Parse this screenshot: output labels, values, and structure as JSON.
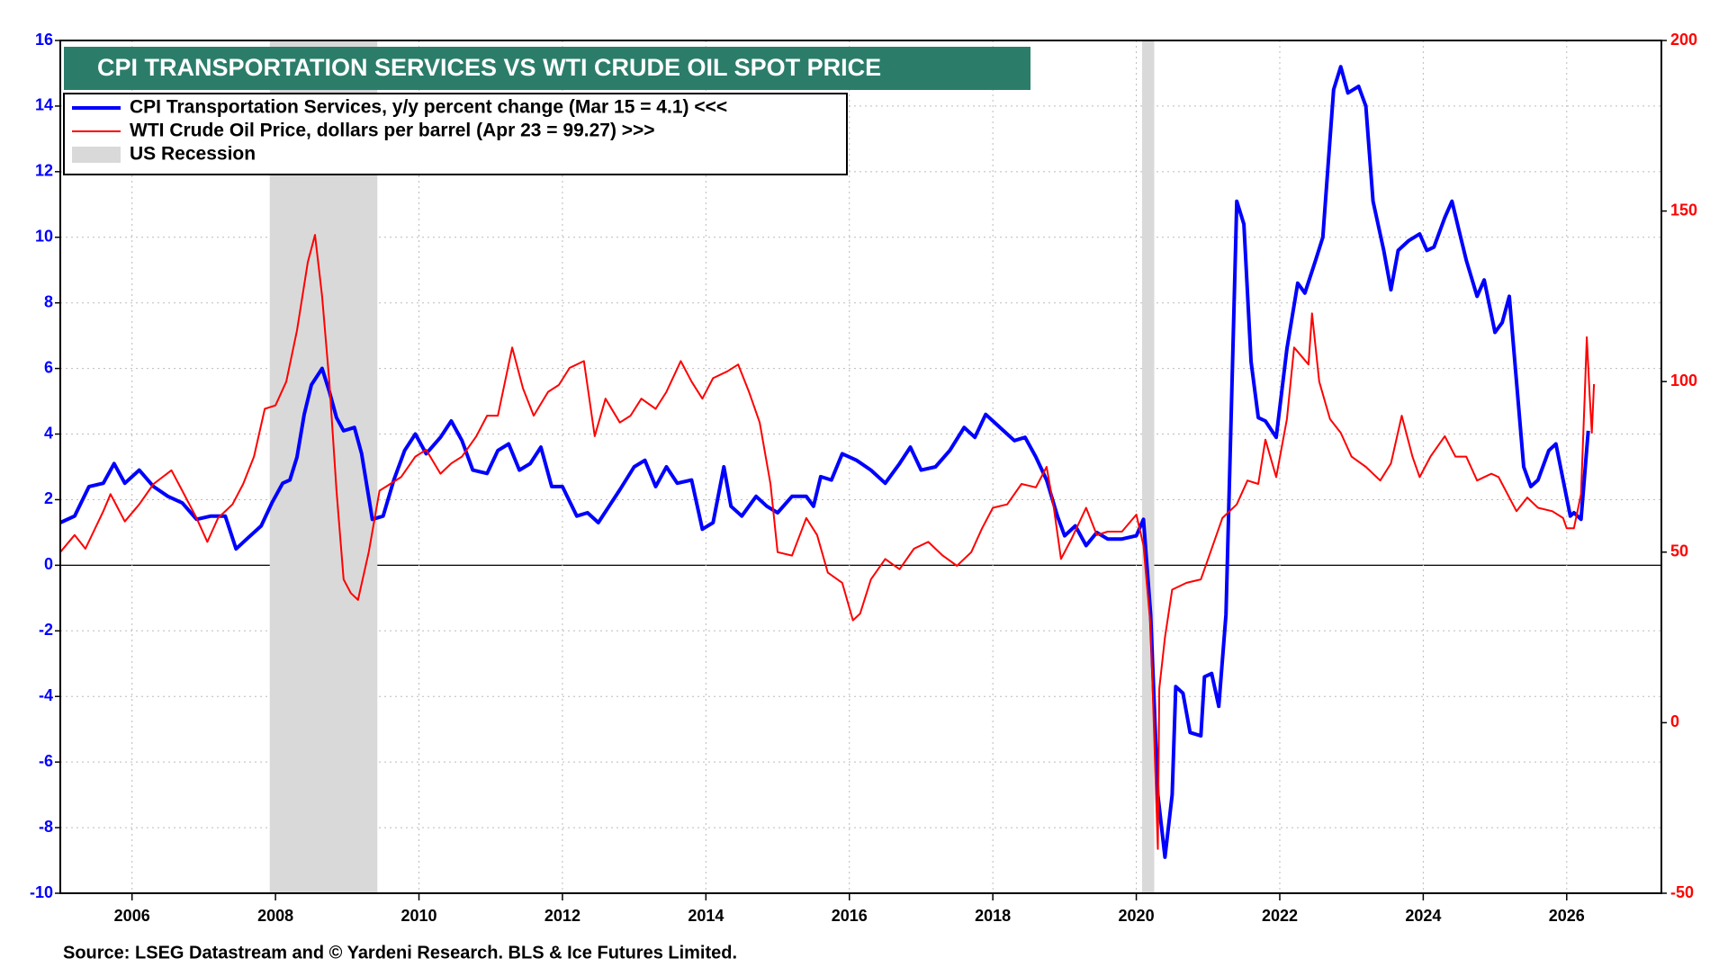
{
  "chart_data": {
    "type": "line",
    "title": "CPI TRANSPORTATION SERVICES VS WTI CRUDE OIL SPOT PRICE",
    "source": "Source: LSEG Datastream and © Yardeni Research. BLS & Ice Futures Limited.",
    "xlim": [
      2005.0,
      2027.32
    ],
    "xticks": [
      2006,
      2008,
      2010,
      2012,
      2014,
      2016,
      2018,
      2020,
      2022,
      2024,
      2026
    ],
    "ylim": [
      -10,
      16
    ],
    "yticks": [
      -10,
      -8,
      -6,
      -4,
      -2,
      0,
      2,
      4,
      6,
      8,
      10,
      12,
      14,
      16
    ],
    "y2lim": [
      -50,
      200
    ],
    "y2ticks": [
      -50,
      0,
      50,
      100,
      150,
      200
    ],
    "grid": true,
    "recessions": {
      "name": "US Recession",
      "color": "#d9d9d9",
      "ranges": [
        [
          2007.92,
          2009.42
        ],
        [
          2020.08,
          2020.25
        ]
      ]
    },
    "series": [
      {
        "name": "CPI Transportation Services, y/y percent change (Mar 15 = 4.1) <<<",
        "color": "#0000ff",
        "axis": "y",
        "x": [
          2005.0,
          2005.2,
          2005.4,
          2005.6,
          2005.75,
          2005.9,
          2006.1,
          2006.3,
          2006.5,
          2006.7,
          2006.9,
          2007.1,
          2007.3,
          2007.45,
          2007.6,
          2007.8,
          2007.95,
          2008.1,
          2008.2,
          2008.3,
          2008.4,
          2008.5,
          2008.65,
          2008.75,
          2008.85,
          2008.95,
          2009.1,
          2009.2,
          2009.35,
          2009.5,
          2009.65,
          2009.8,
          2009.95,
          2010.1,
          2010.3,
          2010.45,
          2010.6,
          2010.75,
          2010.95,
          2011.1,
          2011.25,
          2011.4,
          2011.55,
          2011.7,
          2011.85,
          2012.0,
          2012.2,
          2012.35,
          2012.5,
          2012.65,
          2012.8,
          2013.0,
          2013.15,
          2013.3,
          2013.45,
          2013.6,
          2013.8,
          2013.95,
          2014.1,
          2014.25,
          2014.35,
          2014.5,
          2014.7,
          2014.85,
          2015.0,
          2015.2,
          2015.4,
          2015.5,
          2015.6,
          2015.75,
          2015.9,
          2016.1,
          2016.3,
          2016.5,
          2016.7,
          2016.85,
          2017.0,
          2017.2,
          2017.4,
          2017.6,
          2017.75,
          2017.9,
          2018.0,
          2018.15,
          2018.3,
          2018.45,
          2018.6,
          2018.75,
          2018.9,
          2019.0,
          2019.15,
          2019.3,
          2019.45,
          2019.6,
          2019.8,
          2020.0,
          2020.1,
          2020.2,
          2020.3,
          2020.4,
          2020.5,
          2020.55,
          2020.65,
          2020.75,
          2020.9,
          2020.95,
          2021.05,
          2021.15,
          2021.25,
          2021.4,
          2021.5,
          2021.6,
          2021.7,
          2021.8,
          2021.95,
          2022.1,
          2022.25,
          2022.35,
          2022.5,
          2022.6,
          2022.75,
          2022.85,
          2022.95,
          2023.1,
          2023.2,
          2023.3,
          2023.45,
          2023.55,
          2023.65,
          2023.8,
          2023.95,
          2024.05,
          2024.15,
          2024.3,
          2024.4,
          2024.5,
          2024.6,
          2024.75,
          2024.85,
          2025.0,
          2025.1,
          2025.2,
          2025.4,
          2025.5,
          2025.6,
          2025.75,
          2025.85,
          2025.95,
          2026.05,
          2026.1,
          2026.2,
          2026.3
        ],
        "values": [
          1.3,
          1.5,
          2.4,
          2.5,
          3.1,
          2.5,
          2.9,
          2.4,
          2.1,
          1.9,
          1.4,
          1.5,
          1.5,
          0.5,
          0.8,
          1.2,
          1.9,
          2.5,
          2.6,
          3.3,
          4.6,
          5.5,
          6.0,
          5.3,
          4.5,
          4.1,
          4.2,
          3.4,
          1.4,
          1.5,
          2.6,
          3.5,
          4.0,
          3.4,
          3.9,
          4.4,
          3.8,
          2.9,
          2.8,
          3.5,
          3.7,
          2.9,
          3.1,
          3.6,
          2.4,
          2.4,
          1.5,
          1.6,
          1.3,
          1.8,
          2.3,
          3.0,
          3.2,
          2.4,
          3.0,
          2.5,
          2.6,
          1.1,
          1.3,
          3.0,
          1.8,
          1.5,
          2.1,
          1.8,
          1.6,
          2.1,
          2.1,
          1.8,
          2.7,
          2.6,
          3.4,
          3.2,
          2.9,
          2.5,
          3.1,
          3.6,
          2.9,
          3.0,
          3.5,
          4.2,
          3.9,
          4.6,
          4.4,
          4.1,
          3.8,
          3.9,
          3.3,
          2.6,
          1.5,
          0.9,
          1.2,
          0.6,
          1.0,
          0.8,
          0.8,
          0.9,
          1.4,
          -1.5,
          -7.0,
          -8.9,
          -7.0,
          -3.7,
          -3.9,
          -5.1,
          -5.2,
          -3.4,
          -3.3,
          -4.3,
          -1.5,
          11.1,
          10.4,
          6.2,
          4.5,
          4.4,
          3.9,
          6.6,
          8.6,
          8.3,
          9.3,
          10.0,
          14.5,
          15.2,
          14.4,
          14.6,
          14.0,
          11.1,
          9.6,
          8.4,
          9.6,
          9.9,
          10.1,
          9.6,
          9.7,
          10.6,
          11.1,
          10.2,
          9.3,
          8.2,
          8.7,
          7.1,
          7.4,
          8.2,
          3.0,
          2.4,
          2.6,
          3.5,
          3.7,
          2.6,
          1.5,
          1.6,
          1.4,
          4.1
        ]
      },
      {
        "name": "WTI Crude Oil Price, dollars per barrel (Apr 23 = 99.27) >>>",
        "color": "#ff0000",
        "axis": "y2",
        "x": [
          2005.0,
          2005.2,
          2005.35,
          2005.6,
          2005.7,
          2005.9,
          2006.1,
          2006.3,
          2006.55,
          2006.7,
          2006.9,
          2007.05,
          2007.2,
          2007.4,
          2007.55,
          2007.7,
          2007.85,
          2008.0,
          2008.15,
          2008.3,
          2008.45,
          2008.55,
          2008.65,
          2008.75,
          2008.85,
          2008.95,
          2009.05,
          2009.15,
          2009.3,
          2009.45,
          2009.6,
          2009.75,
          2009.95,
          2010.1,
          2010.3,
          2010.45,
          2010.6,
          2010.8,
          2010.95,
          2011.1,
          2011.3,
          2011.45,
          2011.6,
          2011.8,
          2011.95,
          2012.1,
          2012.3,
          2012.45,
          2012.6,
          2012.8,
          2012.95,
          2013.1,
          2013.3,
          2013.45,
          2013.65,
          2013.8,
          2013.95,
          2014.1,
          2014.3,
          2014.45,
          2014.6,
          2014.75,
          2014.9,
          2015.0,
          2015.2,
          2015.4,
          2015.55,
          2015.7,
          2015.9,
          2016.05,
          2016.15,
          2016.3,
          2016.5,
          2016.7,
          2016.9,
          2017.1,
          2017.3,
          2017.5,
          2017.7,
          2017.85,
          2018.0,
          2018.2,
          2018.4,
          2018.6,
          2018.75,
          2018.85,
          2018.95,
          2019.1,
          2019.3,
          2019.45,
          2019.6,
          2019.8,
          2020.0,
          2020.1,
          2020.2,
          2020.3,
          2020.32,
          2020.4,
          2020.5,
          2020.7,
          2020.9,
          2021.0,
          2021.2,
          2021.4,
          2021.55,
          2021.7,
          2021.8,
          2021.95,
          2022.1,
          2022.2,
          2022.4,
          2022.45,
          2022.55,
          2022.7,
          2022.85,
          2023.0,
          2023.2,
          2023.4,
          2023.55,
          2023.7,
          2023.85,
          2023.95,
          2024.1,
          2024.3,
          2024.45,
          2024.6,
          2024.75,
          2024.95,
          2025.05,
          2025.3,
          2025.45,
          2025.6,
          2025.8,
          2025.95,
          2026.0,
          2026.1,
          2026.2,
          2026.25,
          2026.28,
          2026.32,
          2026.35,
          2026.38
        ],
        "values": [
          50,
          55,
          51,
          62,
          67,
          59,
          64,
          70,
          74,
          68,
          60,
          53,
          60,
          64,
          70,
          78,
          92,
          93,
          100,
          115,
          135,
          143,
          125,
          100,
          68,
          42,
          38,
          36,
          50,
          68,
          70,
          72,
          78,
          80,
          73,
          76,
          78,
          84,
          90,
          90,
          110,
          98,
          90,
          97,
          99,
          104,
          106,
          84,
          95,
          88,
          90,
          95,
          92,
          97,
          106,
          100,
          95,
          101,
          103,
          105,
          97,
          88,
          70,
          50,
          49,
          60,
          55,
          44,
          41,
          30,
          32,
          42,
          48,
          45,
          51,
          53,
          49,
          46,
          50,
          57,
          63,
          64,
          70,
          69,
          75,
          63,
          48,
          54,
          63,
          55,
          56,
          56,
          61,
          52,
          28,
          -37,
          10,
          25,
          39,
          41,
          42,
          48,
          60,
          64,
          71,
          70,
          83,
          72,
          89,
          110,
          105,
          120,
          100,
          89,
          85,
          78,
          75,
          71,
          76,
          90,
          78,
          72,
          78,
          84,
          78,
          78,
          71,
          73,
          72,
          62,
          66,
          63,
          62,
          60,
          57,
          57,
          67,
          95,
          113,
          96,
          85,
          99.27
        ]
      }
    ]
  }
}
